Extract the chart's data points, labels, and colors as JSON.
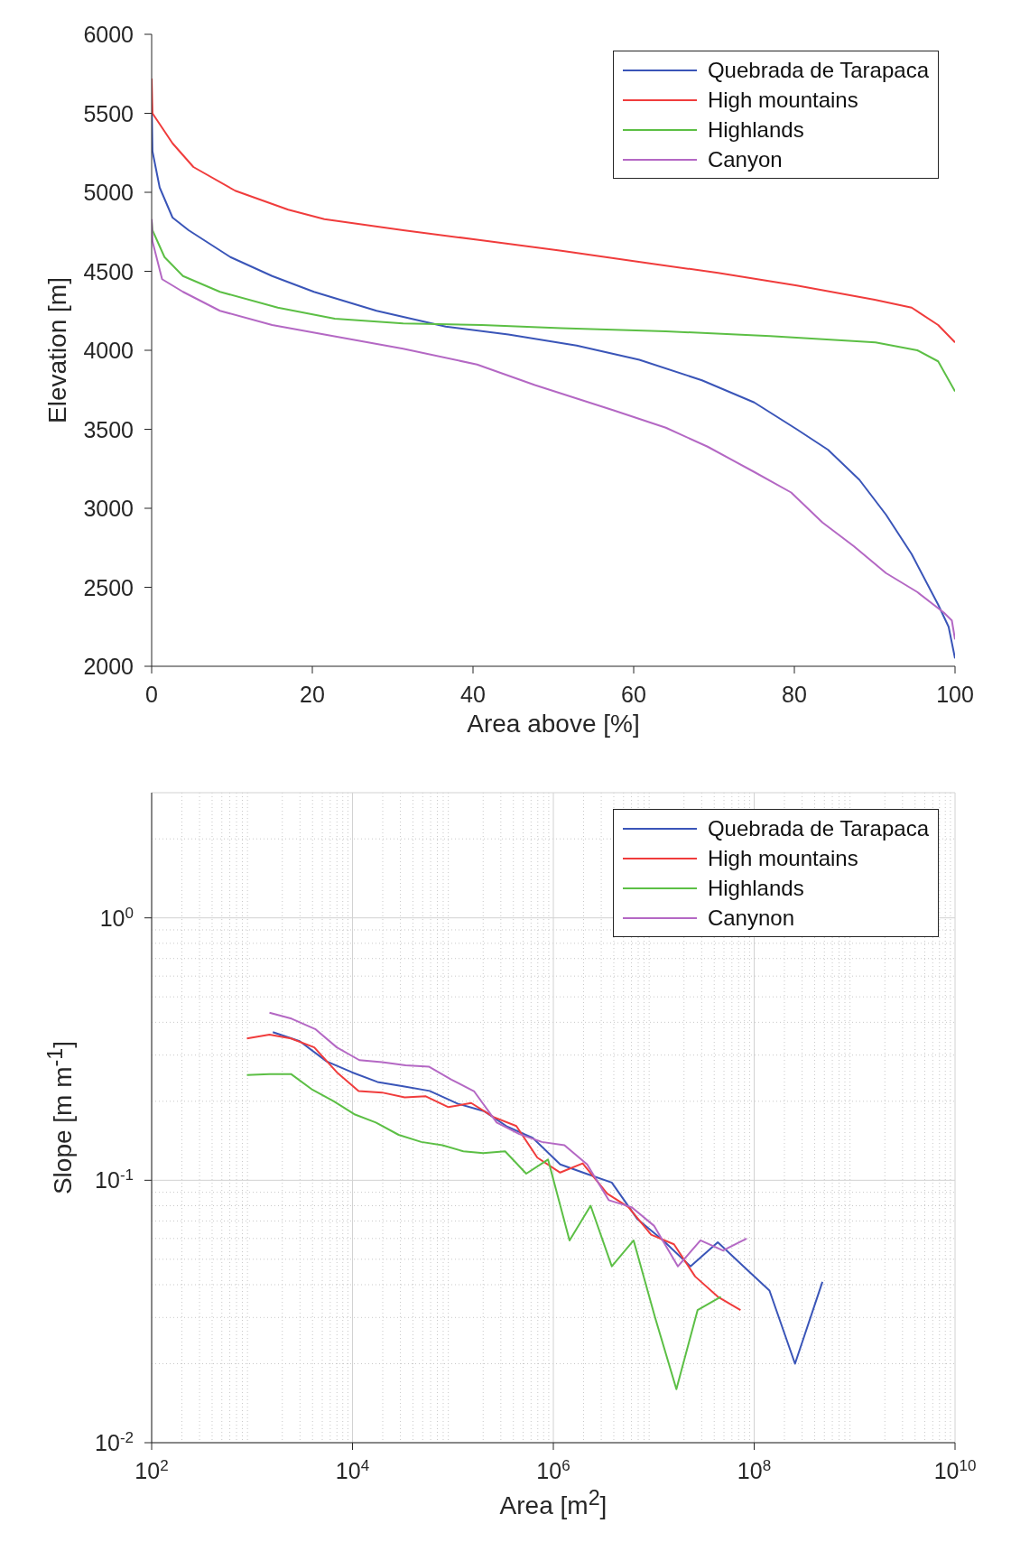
{
  "chart_data": [
    {
      "type": "line",
      "xlabel": "Area above [%]",
      "ylabel": "Elevation [m]",
      "xlim": [
        0,
        100
      ],
      "ylim": [
        2000,
        6000
      ],
      "xticks": [
        0,
        20,
        40,
        60,
        80,
        100
      ],
      "yticks": [
        2000,
        2500,
        3000,
        3500,
        4000,
        4500,
        5000,
        5500,
        6000
      ],
      "legend": "top right",
      "series": [
        {
          "name": "Quebrada de Tarapaca",
          "color": "#3a55b8",
          "x": [
            0,
            0.1,
            1,
            2.6,
            4.6,
            9.8,
            15,
            20.2,
            28,
            36.6,
            44.4,
            52.9,
            60.7,
            68.5,
            75,
            80.3,
            84.2,
            88.1,
            91.4,
            94.6,
            97.9,
            99.2,
            100
          ],
          "values": [
            5570,
            5260,
            5030,
            4840,
            4760,
            4590,
            4470,
            4370,
            4250,
            4150,
            4100,
            4030,
            3940,
            3810,
            3670,
            3500,
            3370,
            3180,
            2960,
            2710,
            2390,
            2250,
            2050
          ]
        },
        {
          "name": "High mountains",
          "color": "#f03c3c",
          "x": [
            0,
            0.1,
            2.6,
            5.2,
            10.4,
            17,
            21.5,
            31.3,
            40.5,
            51,
            62,
            70.5,
            80.3,
            90,
            94.6,
            97.9,
            100
          ],
          "values": [
            5720,
            5500,
            5310,
            5160,
            5010,
            4890,
            4830,
            4760,
            4700,
            4630,
            4550,
            4490,
            4410,
            4320,
            4270,
            4160,
            4050
          ]
        },
        {
          "name": "Highlands",
          "color": "#5cbf45",
          "x": [
            0,
            0.1,
            1.6,
            3.9,
            8.5,
            15.7,
            22.8,
            31.3,
            41.1,
            51,
            64,
            77,
            90.1,
            95.3,
            97.9,
            100
          ],
          "values": [
            4820,
            4760,
            4590,
            4470,
            4370,
            4270,
            4200,
            4170,
            4160,
            4140,
            4120,
            4090,
            4050,
            4000,
            3930,
            3740
          ]
        },
        {
          "name": "Canyon",
          "color": "#b468c4",
          "x": [
            0,
            0.1,
            1.3,
            3.9,
            8.5,
            15,
            21.5,
            31.3,
            40.5,
            47.7,
            57.5,
            64,
            69.2,
            75,
            79.6,
            83.5,
            87.4,
            91.4,
            95.3,
            98.6,
            99.6,
            100
          ],
          "values": [
            4830,
            4690,
            4450,
            4370,
            4250,
            4160,
            4100,
            4010,
            3910,
            3780,
            3620,
            3510,
            3390,
            3230,
            3100,
            2910,
            2760,
            2590,
            2470,
            2340,
            2290,
            2170
          ]
        }
      ]
    },
    {
      "type": "line",
      "xlabel": "Area [m$^{2}$]",
      "ylabel": "Slope [m m$^{-1}$]",
      "log": "xy",
      "grid": true,
      "xlim": [
        100,
        10000000000
      ],
      "ylim": [
        0.01,
        3
      ],
      "xticks": [
        {
          "value": 100,
          "label": "10$^{2}$"
        },
        {
          "value": 10000,
          "label": "10$^{4}$"
        },
        {
          "value": 1000000,
          "label": "10$^{6}$"
        },
        {
          "value": 100000000,
          "label": "10$^{8}$"
        },
        {
          "value": 10000000000,
          "label": "10$^{10}$"
        }
      ],
      "yticks": [
        {
          "value": 0.01,
          "label": "10$^{-2}$"
        },
        {
          "value": 0.1,
          "label": "10$^{-1}$"
        },
        {
          "value": 1,
          "label": "10$^{0}$"
        }
      ],
      "legend": "top right",
      "series": [
        {
          "name": "Quebrada de Tarapaca",
          "color": "#3a55b8",
          "x": [
            1610,
            2980,
            5520,
            9860,
            17700,
            32000,
            58700,
            111000,
            207000,
            348000,
            625000,
            1170000,
            2120000,
            3820000,
            6900000,
            12400000,
            23200000,
            43400000,
            78300000,
            142000000,
            255000000,
            478000000
          ],
          "values": [
            0.367,
            0.339,
            0.284,
            0.258,
            0.237,
            0.228,
            0.219,
            0.196,
            0.183,
            0.16,
            0.145,
            0.115,
            0.106,
            0.098,
            0.071,
            0.059,
            0.047,
            0.058,
            0.047,
            0.038,
            0.02,
            0.041
          ]
        },
        {
          "name": "High mountains",
          "color": "#f03c3c",
          "x": [
            889,
            1490,
            2440,
            4160,
            6980,
            11500,
            19700,
            33100,
            53700,
            90200,
            152000,
            255000,
            428000,
            693000,
            1170000,
            1960000,
            3440000,
            5600000,
            9420000,
            15900000,
            25800000,
            43400000,
            73100000
          ],
          "values": [
            0.347,
            0.359,
            0.347,
            0.321,
            0.258,
            0.219,
            0.216,
            0.207,
            0.209,
            0.19,
            0.197,
            0.174,
            0.161,
            0.122,
            0.107,
            0.116,
            0.089,
            0.079,
            0.062,
            0.057,
            0.043,
            0.036,
            0.032
          ]
        },
        {
          "name": "Highlands",
          "color": "#5cbf45",
          "x": [
            889,
            1490,
            2440,
            4010,
            6520,
            10600,
            17100,
            28800,
            48400,
            78500,
            127000,
            200000,
            331000,
            537000,
            885000,
            1450000,
            2350000,
            3820000,
            6300000,
            10300000,
            16800000,
            27300000,
            46600000
          ],
          "values": [
            0.252,
            0.254,
            0.254,
            0.221,
            0.2,
            0.178,
            0.166,
            0.149,
            0.14,
            0.136,
            0.129,
            0.127,
            0.129,
            0.106,
            0.12,
            0.059,
            0.08,
            0.047,
            0.059,
            0.03,
            0.016,
            0.032,
            0.036
          ]
        },
        {
          "name": "Canynon",
          "color": "#b468c4",
          "x": [
            1490,
            2470,
            4250,
            6980,
            11700,
            19700,
            33800,
            57500,
            96600,
            163000,
            273000,
            458000,
            769000,
            1290000,
            2170000,
            3560000,
            6000000,
            10100000,
            17400000,
            29200000,
            48900000,
            84100000
          ],
          "values": [
            0.435,
            0.413,
            0.377,
            0.321,
            0.287,
            0.282,
            0.274,
            0.271,
            0.242,
            0.218,
            0.166,
            0.15,
            0.14,
            0.136,
            0.115,
            0.084,
            0.079,
            0.067,
            0.047,
            0.059,
            0.054,
            0.06
          ]
        }
      ]
    }
  ]
}
